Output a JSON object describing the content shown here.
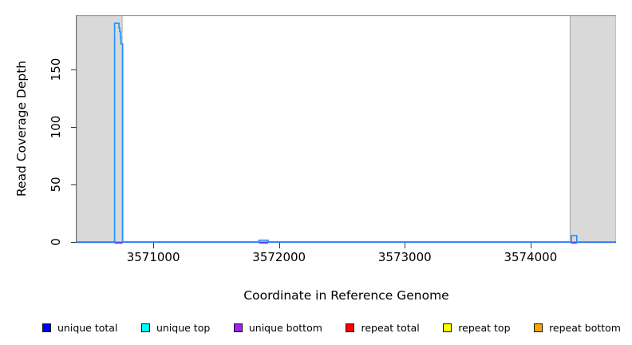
{
  "chart_data": {
    "type": "line",
    "title": "",
    "xlabel": "Coordinate in Reference Genome",
    "ylabel": "Read Coverage Depth",
    "xlim": [
      3570390,
      3574680
    ],
    "ylim": [
      0,
      197
    ],
    "grid": false,
    "xticks": [
      {
        "value": 3571000,
        "label": "3571000"
      },
      {
        "value": 3572000,
        "label": "3572000"
      },
      {
        "value": 3573000,
        "label": "3573000"
      },
      {
        "value": 3574000,
        "label": "3574000"
      }
    ],
    "yticks": [
      {
        "value": 0,
        "label": "0"
      },
      {
        "value": 50,
        "label": "50"
      },
      {
        "value": 100,
        "label": "100"
      },
      {
        "value": 150,
        "label": "150"
      }
    ],
    "shaded_regions": [
      {
        "x0": 3570390,
        "x1": 3570752
      },
      {
        "x0": 3574315,
        "x1": 3574680
      }
    ],
    "shade_color": "#d9d9d9",
    "shade_border_color": "#a6a6a6",
    "plot_top_border_color": "#999999",
    "baseline_color_top": "#a396f6",
    "baseline_color_bottom": "#5243ef",
    "series": [
      {
        "name": "unique total",
        "legend_color": "#0000ff",
        "line_color": "#1e90ff",
        "points": [
          [
            3570390,
            0
          ],
          [
            3570692,
            0
          ],
          [
            3570692,
            190
          ],
          [
            3570727,
            190
          ],
          [
            3570727,
            186
          ],
          [
            3570733,
            186
          ],
          [
            3570733,
            183
          ],
          [
            3570738,
            183
          ],
          [
            3570738,
            178
          ],
          [
            3570742,
            178
          ],
          [
            3570742,
            172
          ],
          [
            3570756,
            172
          ],
          [
            3570756,
            0
          ],
          [
            3571840,
            0
          ],
          [
            3571840,
            1.5
          ],
          [
            3571914,
            1.5
          ],
          [
            3571914,
            0
          ],
          [
            3574325,
            0
          ],
          [
            3574325,
            5.5
          ],
          [
            3574368,
            5.5
          ],
          [
            3574368,
            0
          ],
          [
            3574680,
            0
          ]
        ]
      },
      {
        "name": "repeat total",
        "legend_color": "#ff0000",
        "line_color": "#ff4040",
        "constant_value": 0,
        "visible_zero_segments": [
          [
            3570692,
            3570756
          ],
          [
            3571840,
            3571914
          ],
          [
            3574325,
            3574368
          ]
        ]
      },
      {
        "name": "unique top",
        "legend_color": "#00ffff",
        "constant_value": 0
      },
      {
        "name": "unique bottom",
        "legend_color": "#a020f0",
        "constant_value": 0
      },
      {
        "name": "repeat top",
        "legend_color": "#ffff00",
        "constant_value": 0
      },
      {
        "name": "repeat bottom",
        "legend_color": "#ffa500",
        "constant_value": 0
      }
    ],
    "legend": [
      {
        "label": "unique total",
        "color": "#0000ff"
      },
      {
        "label": "unique top",
        "color": "#00ffff"
      },
      {
        "label": "unique bottom",
        "color": "#a020f0"
      },
      {
        "label": "repeat total",
        "color": "#ff0000"
      },
      {
        "label": "repeat top",
        "color": "#ffff00"
      },
      {
        "label": "repeat bottom",
        "color": "#ffa500"
      }
    ],
    "legend_position": "bottom"
  }
}
